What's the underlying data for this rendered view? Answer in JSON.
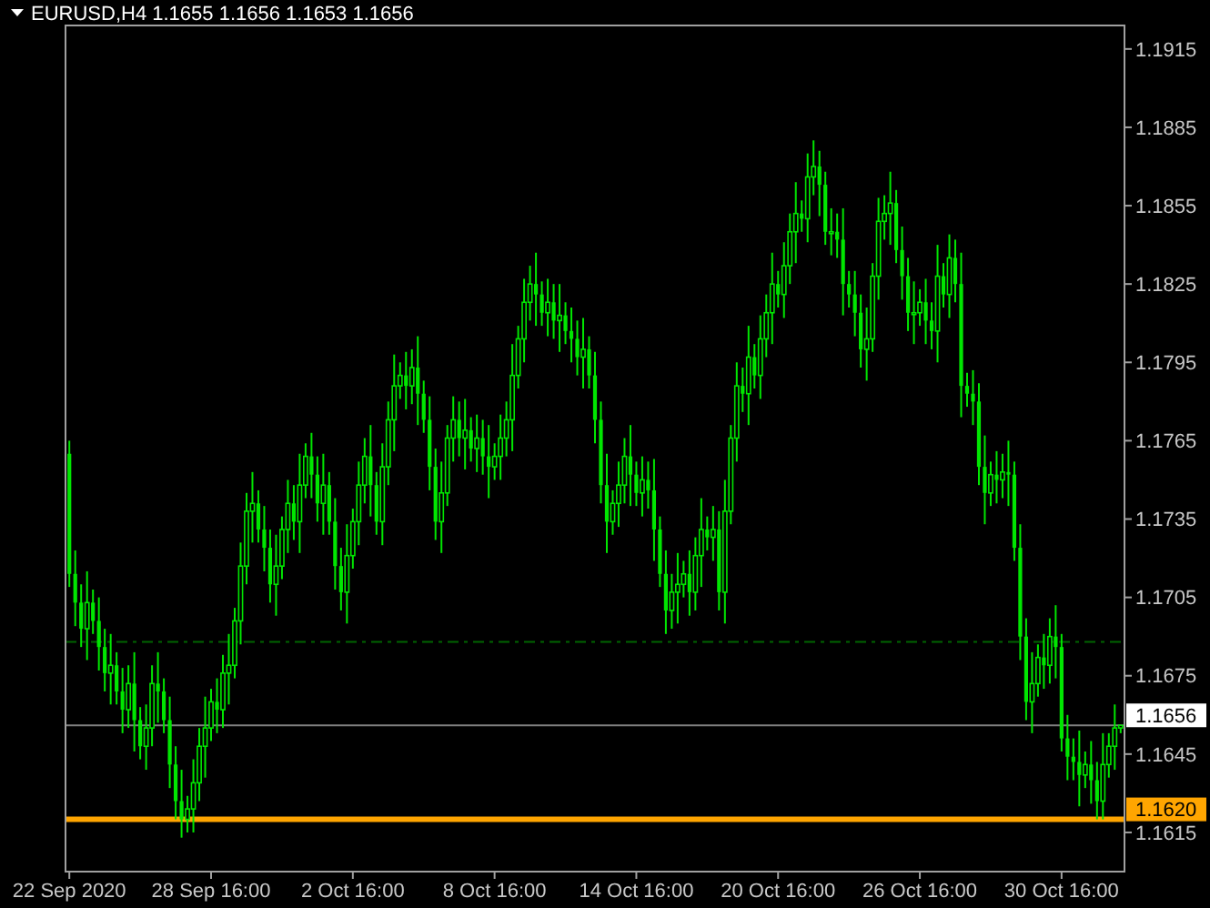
{
  "chart_data": {
    "type": "candlestick",
    "title": "EURUSD,H4 1.1655 1.1656 1.1653 1.1656",
    "color": "#00e600",
    "categories": [
      "22 Sep 2020",
      null,
      null,
      null,
      null,
      null,
      null,
      null,
      null,
      null,
      null,
      null,
      null,
      null,
      null,
      null,
      null,
      null,
      null,
      null,
      null,
      null,
      null,
      null,
      "28 Sep 16:00",
      null,
      null,
      null,
      null,
      null,
      null,
      null,
      null,
      null,
      null,
      null,
      null,
      null,
      null,
      null,
      null,
      null,
      null,
      null,
      null,
      null,
      null,
      null,
      "2 Oct 16:00",
      null,
      null,
      null,
      null,
      null,
      null,
      null,
      null,
      null,
      null,
      null,
      null,
      null,
      null,
      null,
      null,
      null,
      null,
      null,
      null,
      null,
      null,
      null,
      "8 Oct 16:00",
      null,
      null,
      null,
      null,
      null,
      null,
      null,
      null,
      null,
      null,
      null,
      null,
      null,
      null,
      null,
      null,
      null,
      null,
      null,
      null,
      null,
      null,
      null,
      "14 Oct 16:00",
      null,
      null,
      null,
      null,
      null,
      null,
      null,
      null,
      null,
      null,
      null,
      null,
      null,
      null,
      null,
      null,
      null,
      null,
      null,
      null,
      null,
      null,
      null,
      "20 Oct 16:00",
      null,
      null,
      null,
      null,
      null,
      null,
      null,
      null,
      null,
      null,
      null,
      null,
      null,
      null,
      null,
      null,
      null,
      null,
      null,
      null,
      null,
      null,
      null,
      "26 Oct 16:00",
      null,
      null,
      null,
      null,
      null,
      null,
      null,
      null,
      null,
      null,
      null,
      null,
      null,
      null,
      null,
      null,
      null,
      null,
      null,
      null,
      null,
      null,
      null,
      "30 Oct 16:00",
      null,
      null,
      null,
      null,
      null,
      null,
      null,
      null,
      null,
      null
    ],
    "ohlc": [
      [
        1.176,
        1.1765,
        1.1709,
        1.1714
      ],
      [
        1.1714,
        1.1723,
        1.1694,
        1.1703
      ],
      [
        1.1703,
        1.171,
        1.1686,
        1.1693
      ],
      [
        1.1693,
        1.1715,
        1.1681,
        1.1703
      ],
      [
        1.1703,
        1.1708,
        1.1691,
        1.1696
      ],
      [
        1.1696,
        1.1705,
        1.1677,
        1.1686
      ],
      [
        1.1686,
        1.1693,
        1.1669,
        1.1676
      ],
      [
        1.1676,
        1.1691,
        1.1664,
        1.1679
      ],
      [
        1.1679,
        1.1684,
        1.1664,
        1.1669
      ],
      [
        1.1669,
        1.1678,
        1.1653,
        1.1662
      ],
      [
        1.1662,
        1.1679,
        1.1655,
        1.1672
      ],
      [
        1.1672,
        1.1684,
        1.1646,
        1.1658
      ],
      [
        1.1658,
        1.1663,
        1.1643,
        1.1648
      ],
      [
        1.1648,
        1.1664,
        1.1639,
        1.1655
      ],
      [
        1.1655,
        1.1679,
        1.1648,
        1.1672
      ],
      [
        1.1672,
        1.1684,
        1.1657,
        1.1669
      ],
      [
        1.1669,
        1.1674,
        1.1653,
        1.1658
      ],
      [
        1.1658,
        1.1667,
        1.1632,
        1.1641
      ],
      [
        1.1641,
        1.1648,
        1.162,
        1.1627
      ],
      [
        1.1627,
        1.1639,
        1.1613,
        1.162
      ],
      [
        1.162,
        1.1629,
        1.1615,
        1.1624
      ],
      [
        1.1624,
        1.1643,
        1.1615,
        1.1634
      ],
      [
        1.1634,
        1.1655,
        1.1627,
        1.1648
      ],
      [
        1.1648,
        1.1667,
        1.1636,
        1.1655
      ],
      [
        1.1655,
        1.167,
        1.165,
        1.1665
      ],
      [
        1.1665,
        1.1674,
        1.1653,
        1.1662
      ],
      [
        1.1662,
        1.1683,
        1.1655,
        1.1676
      ],
      [
        1.1676,
        1.1691,
        1.1664,
        1.1679
      ],
      [
        1.1679,
        1.1701,
        1.1674,
        1.1696
      ],
      [
        1.1696,
        1.1726,
        1.1687,
        1.1717
      ],
      [
        1.1717,
        1.1745,
        1.171,
        1.1738
      ],
      [
        1.1738,
        1.1753,
        1.1726,
        1.1741
      ],
      [
        1.1741,
        1.1746,
        1.1726,
        1.1731
      ],
      [
        1.1731,
        1.174,
        1.1715,
        1.1724
      ],
      [
        1.1724,
        1.1731,
        1.1703,
        1.171
      ],
      [
        1.171,
        1.1729,
        1.1698,
        1.1717
      ],
      [
        1.1717,
        1.1736,
        1.1712,
        1.1731
      ],
      [
        1.1731,
        1.175,
        1.1722,
        1.1741
      ],
      [
        1.1741,
        1.1748,
        1.1727,
        1.1734
      ],
      [
        1.1734,
        1.176,
        1.1722,
        1.1748
      ],
      [
        1.1748,
        1.1764,
        1.1743,
        1.1759
      ],
      [
        1.1759,
        1.1768,
        1.1743,
        1.1752
      ],
      [
        1.1752,
        1.1759,
        1.1734,
        1.1741
      ],
      [
        1.1741,
        1.176,
        1.1729,
        1.1748
      ],
      [
        1.1748,
        1.1753,
        1.1729,
        1.1734
      ],
      [
        1.1734,
        1.1743,
        1.1708,
        1.1717
      ],
      [
        1.1717,
        1.1724,
        1.17,
        1.1707
      ],
      [
        1.1707,
        1.1733,
        1.1695,
        1.1721
      ],
      [
        1.1721,
        1.1739,
        1.1716,
        1.1734
      ],
      [
        1.1734,
        1.1757,
        1.1725,
        1.1748
      ],
      [
        1.1748,
        1.1766,
        1.1741,
        1.1759
      ],
      [
        1.1759,
        1.1771,
        1.1736,
        1.1748
      ],
      [
        1.1748,
        1.1753,
        1.1729,
        1.1734
      ],
      [
        1.1734,
        1.1764,
        1.1725,
        1.1755
      ],
      [
        1.1755,
        1.178,
        1.1748,
        1.1773
      ],
      [
        1.1773,
        1.1798,
        1.1761,
        1.1786
      ],
      [
        1.1786,
        1.1795,
        1.1781,
        1.179
      ],
      [
        1.179,
        1.1799,
        1.1777,
        1.1786
      ],
      [
        1.1786,
        1.18,
        1.1779,
        1.1793
      ],
      [
        1.1793,
        1.1805,
        1.1771,
        1.1783
      ],
      [
        1.1783,
        1.1788,
        1.1768,
        1.1773
      ],
      [
        1.1773,
        1.1782,
        1.1746,
        1.1755
      ],
      [
        1.1755,
        1.1762,
        1.1727,
        1.1734
      ],
      [
        1.1734,
        1.1757,
        1.1722,
        1.1745
      ],
      [
        1.1745,
        1.1771,
        1.174,
        1.1766
      ],
      [
        1.1766,
        1.1782,
        1.1757,
        1.1773
      ],
      [
        1.1773,
        1.178,
        1.1759,
        1.1766
      ],
      [
        1.1766,
        1.1781,
        1.1754,
        1.1769
      ],
      [
        1.1769,
        1.1774,
        1.1757,
        1.1762
      ],
      [
        1.1762,
        1.1775,
        1.1753,
        1.1766
      ],
      [
        1.1766,
        1.1773,
        1.1752,
        1.1759
      ],
      [
        1.1759,
        1.1771,
        1.1743,
        1.1755
      ],
      [
        1.1755,
        1.1764,
        1.175,
        1.1759
      ],
      [
        1.1759,
        1.1775,
        1.175,
        1.1766
      ],
      [
        1.1766,
        1.178,
        1.1759,
        1.1773
      ],
      [
        1.1773,
        1.1802,
        1.1761,
        1.179
      ],
      [
        1.179,
        1.1809,
        1.1785,
        1.1804
      ],
      [
        1.1804,
        1.1827,
        1.1795,
        1.1818
      ],
      [
        1.1818,
        1.1832,
        1.1811,
        1.1825
      ],
      [
        1.1825,
        1.1837,
        1.1809,
        1.1821
      ],
      [
        1.1821,
        1.1826,
        1.1809,
        1.1814
      ],
      [
        1.1814,
        1.1827,
        1.1805,
        1.1818
      ],
      [
        1.1818,
        1.1825,
        1.1804,
        1.1811
      ],
      [
        1.1811,
        1.1825,
        1.1799,
        1.1813
      ],
      [
        1.1813,
        1.1818,
        1.1802,
        1.1807
      ],
      [
        1.1807,
        1.1816,
        1.1795,
        1.1804
      ],
      [
        1.1804,
        1.1811,
        1.179,
        1.1797
      ],
      [
        1.1797,
        1.1812,
        1.1785,
        1.18
      ],
      [
        1.18,
        1.1805,
        1.1785,
        1.179
      ],
      [
        1.179,
        1.1799,
        1.1764,
        1.1773
      ],
      [
        1.1773,
        1.178,
        1.1741,
        1.1748
      ],
      [
        1.1748,
        1.176,
        1.1722,
        1.1734
      ],
      [
        1.1734,
        1.1746,
        1.1729,
        1.1741
      ],
      [
        1.1741,
        1.1757,
        1.1732,
        1.1748
      ],
      [
        1.1748,
        1.1766,
        1.1741,
        1.1759
      ],
      [
        1.1759,
        1.1771,
        1.174,
        1.1752
      ],
      [
        1.1752,
        1.1757,
        1.174,
        1.1745
      ],
      [
        1.1745,
        1.1759,
        1.1736,
        1.175
      ],
      [
        1.175,
        1.1757,
        1.1739,
        1.1746
      ],
      [
        1.1746,
        1.1758,
        1.1719,
        1.1731
      ],
      [
        1.1731,
        1.1736,
        1.1709,
        1.1714
      ],
      [
        1.1714,
        1.1723,
        1.1691,
        1.17
      ],
      [
        1.17,
        1.1714,
        1.1693,
        1.1707
      ],
      [
        1.1707,
        1.1722,
        1.1695,
        1.171
      ],
      [
        1.171,
        1.1719,
        1.1705,
        1.1714
      ],
      [
        1.1714,
        1.1723,
        1.1698,
        1.1707
      ],
      [
        1.1707,
        1.1728,
        1.17,
        1.1721
      ],
      [
        1.1721,
        1.1743,
        1.1709,
        1.1731
      ],
      [
        1.1731,
        1.1736,
        1.1723,
        1.1728
      ],
      [
        1.1728,
        1.174,
        1.1719,
        1.1731
      ],
      [
        1.1731,
        1.1738,
        1.17,
        1.1707
      ],
      [
        1.1707,
        1.175,
        1.1695,
        1.1738
      ],
      [
        1.1738,
        1.1771,
        1.1733,
        1.1766
      ],
      [
        1.1766,
        1.1795,
        1.1757,
        1.1786
      ],
      [
        1.1786,
        1.1793,
        1.1776,
        1.1783
      ],
      [
        1.1783,
        1.1809,
        1.1771,
        1.1797
      ],
      [
        1.1797,
        1.1802,
        1.1785,
        1.179
      ],
      [
        1.179,
        1.1813,
        1.1781,
        1.1804
      ],
      [
        1.1804,
        1.1821,
        1.1797,
        1.1814
      ],
      [
        1.1814,
        1.1837,
        1.1802,
        1.1825
      ],
      [
        1.1825,
        1.183,
        1.1816,
        1.1821
      ],
      [
        1.1821,
        1.1841,
        1.1812,
        1.1832
      ],
      [
        1.1832,
        1.1852,
        1.1825,
        1.1845
      ],
      [
        1.1845,
        1.1864,
        1.1833,
        1.1852
      ],
      [
        1.1852,
        1.1857,
        1.1845,
        1.185
      ],
      [
        1.185,
        1.1875,
        1.1841,
        1.1866
      ],
      [
        1.1866,
        1.188,
        1.1859,
        1.187
      ],
      [
        1.187,
        1.1876,
        1.1851,
        1.1863
      ],
      [
        1.1863,
        1.1868,
        1.184,
        1.1845
      ],
      [
        1.1845,
        1.1854,
        1.1836,
        1.1845
      ],
      [
        1.1845,
        1.1852,
        1.1835,
        1.1842
      ],
      [
        1.1842,
        1.1854,
        1.1813,
        1.1825
      ],
      [
        1.1825,
        1.183,
        1.1816,
        1.1821
      ],
      [
        1.1821,
        1.183,
        1.1805,
        1.1814
      ],
      [
        1.1814,
        1.1821,
        1.1793,
        1.18
      ],
      [
        1.18,
        1.1816,
        1.1788,
        1.1804
      ],
      [
        1.1804,
        1.1833,
        1.1799,
        1.1828
      ],
      [
        1.1828,
        1.1858,
        1.1819,
        1.1849
      ],
      [
        1.1849,
        1.1859,
        1.1842,
        1.1852
      ],
      [
        1.1852,
        1.1868,
        1.184,
        1.1856
      ],
      [
        1.1856,
        1.1861,
        1.1833,
        1.1838
      ],
      [
        1.1838,
        1.1847,
        1.1819,
        1.1828
      ],
      [
        1.1828,
        1.1835,
        1.1807,
        1.1814
      ],
      [
        1.1814,
        1.1826,
        1.1802,
        1.1814
      ],
      [
        1.1814,
        1.1823,
        1.1809,
        1.1818
      ],
      [
        1.1818,
        1.1827,
        1.1802,
        1.1811
      ],
      [
        1.1811,
        1.1818,
        1.18,
        1.1807
      ],
      [
        1.1807,
        1.184,
        1.1795,
        1.1828
      ],
      [
        1.1828,
        1.1833,
        1.1816,
        1.1821
      ],
      [
        1.1821,
        1.1844,
        1.1812,
        1.1835
      ],
      [
        1.1835,
        1.1842,
        1.1818,
        1.1825
      ],
      [
        1.1825,
        1.1837,
        1.1774,
        1.1786
      ],
      [
        1.1786,
        1.1791,
        1.1778,
        1.1783
      ],
      [
        1.1783,
        1.1792,
        1.1771,
        1.178
      ],
      [
        1.178,
        1.1787,
        1.1748,
        1.1755
      ],
      [
        1.1755,
        1.1767,
        1.1733,
        1.1745
      ],
      [
        1.1745,
        1.1757,
        1.174,
        1.1752
      ],
      [
        1.1752,
        1.1761,
        1.1741,
        1.175
      ],
      [
        1.175,
        1.176,
        1.1743,
        1.1753
      ],
      [
        1.1753,
        1.1765,
        1.174,
        1.1752
      ],
      [
        1.1752,
        1.1757,
        1.1719,
        1.1724
      ],
      [
        1.1724,
        1.1733,
        1.1681,
        1.169
      ],
      [
        1.169,
        1.1697,
        1.1658,
        1.1665
      ],
      [
        1.1665,
        1.1684,
        1.1653,
        1.1672
      ],
      [
        1.1672,
        1.1687,
        1.1667,
        1.1682
      ],
      [
        1.1682,
        1.1691,
        1.167,
        1.1679
      ],
      [
        1.1679,
        1.1697,
        1.1672,
        1.169
      ],
      [
        1.169,
        1.1702,
        1.1674,
        1.1686
      ],
      [
        1.1686,
        1.1691,
        1.1646,
        1.1651
      ],
      [
        1.1651,
        1.166,
        1.1635,
        1.1644
      ],
      [
        1.1644,
        1.1651,
        1.1635,
        1.1642
      ],
      [
        1.1642,
        1.1654,
        1.1625,
        1.1637
      ],
      [
        1.1637,
        1.1646,
        1.1632,
        1.1641
      ],
      [
        1.1641,
        1.165,
        1.1626,
        1.1635
      ],
      [
        1.1635,
        1.1642,
        1.162,
        1.1627
      ],
      [
        1.1627,
        1.1653,
        1.162,
        1.1641
      ],
      [
        1.1641,
        1.1653,
        1.1636,
        1.1648
      ],
      [
        1.1648,
        1.1664,
        1.1639,
        1.1655
      ],
      [
        1.1655,
        1.1656,
        1.1653,
        1.1656
      ]
    ],
    "ylim": [
      1.16,
      1.1924
    ],
    "yticks": [
      1.1615,
      1.1645,
      1.1675,
      1.1705,
      1.1735,
      1.1765,
      1.1795,
      1.1825,
      1.1855,
      1.1885,
      1.1915
    ],
    "ref_lines": [
      {
        "axis": "y",
        "value": 1.1688,
        "color": "#006400",
        "line_style": "dashed"
      },
      {
        "axis": "y",
        "value": 1.1656,
        "label": "1.1656",
        "color": "#808080"
      },
      {
        "axis": "y",
        "value": 1.162,
        "label": "1.1620",
        "color": "#ffa500"
      }
    ]
  }
}
